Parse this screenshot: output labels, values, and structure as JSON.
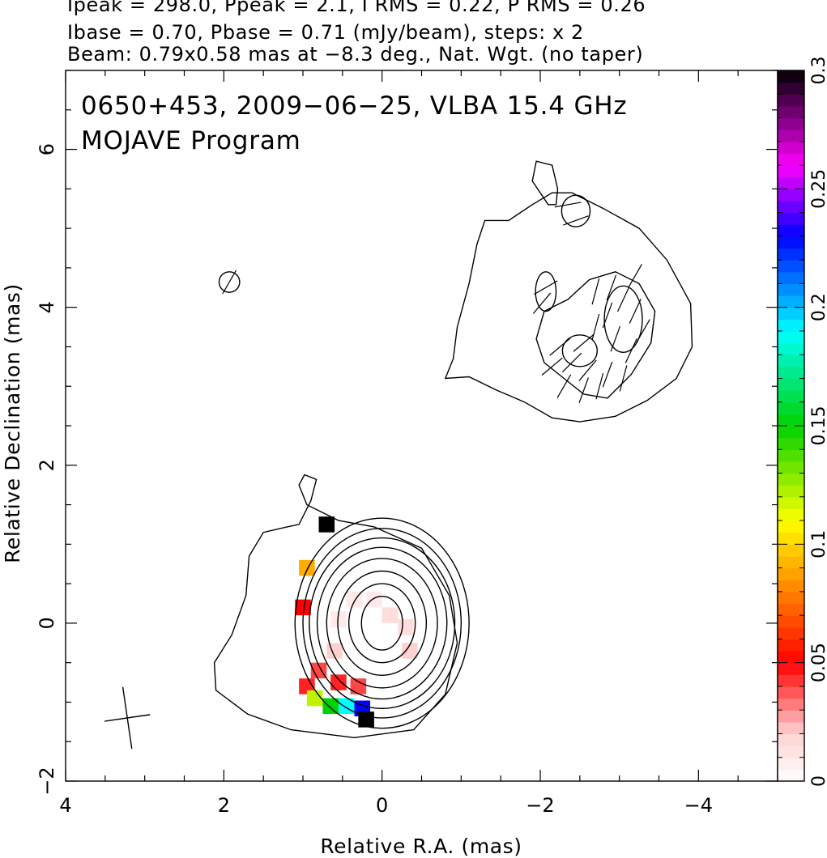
{
  "header": {
    "line1": "Ipeak = 298.0, Ppeak = 2.1, I RMS = 0.22, P RMS = 0.26",
    "line2": "Ibase = 0.70, Pbase = 0.71 (mJy/beam), steps: x 2",
    "line3": "Beam: 0.79x0.58 mas at −8.3 deg., Nat. Wgt. (no taper)"
  },
  "chart_data": {
    "type": "heatmap",
    "title": "0650+453, 2009−06−25, VLBA 15.4 GHz",
    "subtitle": "MOJAVE Program",
    "xlabel": "Relative R.A. (mas)",
    "ylabel": "Relative Declination (mas)",
    "xlim": [
      4,
      -5
    ],
    "ylim": [
      -2,
      7
    ],
    "x_ticks": [
      {
        "value": 4,
        "label": "4"
      },
      {
        "value": 2,
        "label": "2"
      },
      {
        "value": 0,
        "label": "0"
      },
      {
        "value": -2,
        "label": "−2"
      },
      {
        "value": -4,
        "label": "−4"
      }
    ],
    "y_ticks": [
      {
        "value": -2,
        "label": "−2"
      },
      {
        "value": 0,
        "label": "0"
      },
      {
        "value": 2,
        "label": "2"
      },
      {
        "value": 4,
        "label": "4"
      },
      {
        "value": 6,
        "label": "6"
      }
    ],
    "colorbar": {
      "range": [
        0,
        0.3
      ],
      "ticks": [
        {
          "value": 0,
          "label": "0"
        },
        {
          "value": 0.05,
          "label": "0.05"
        },
        {
          "value": 0.1,
          "label": "0.1"
        },
        {
          "value": 0.15,
          "label": "0.15"
        },
        {
          "value": 0.2,
          "label": "0.2"
        },
        {
          "value": 0.25,
          "label": "0.25"
        },
        {
          "value": 0.3,
          "label": "0.3"
        }
      ]
    },
    "core_center": [
      0,
      0
    ],
    "core_contours": [
      {
        "rx": 0.26,
        "ry": 0.34
      },
      {
        "rx": 0.42,
        "ry": 0.5
      },
      {
        "rx": 0.56,
        "ry": 0.66
      },
      {
        "rx": 0.7,
        "ry": 0.82
      },
      {
        "rx": 0.82,
        "ry": 0.96
      },
      {
        "rx": 0.92,
        "ry": 1.08
      },
      {
        "rx": 1.0,
        "ry": 1.2
      },
      {
        "rx": 1.1,
        "ry": 1.33
      }
    ],
    "core_outer_contour": [
      [
        1.2,
        1.22
      ],
      [
        1.05,
        1.25
      ],
      [
        0.9,
        1.55
      ],
      [
        0.83,
        1.82
      ],
      [
        0.98,
        1.88
      ],
      [
        1.05,
        1.75
      ],
      [
        0.95,
        1.5
      ],
      [
        0.55,
        1.3
      ],
      [
        0.1,
        1.22
      ],
      [
        -0.5,
        0.95
      ],
      [
        -0.85,
        0.35
      ],
      [
        -0.95,
        -0.25
      ],
      [
        -0.8,
        -0.9
      ],
      [
        -0.4,
        -1.35
      ],
      [
        0.35,
        -1.45
      ],
      [
        1.15,
        -1.35
      ],
      [
        1.7,
        -1.15
      ],
      [
        2.1,
        -0.85
      ],
      [
        2.12,
        -0.5
      ],
      [
        1.9,
        -0.15
      ],
      [
        1.72,
        0.35
      ],
      [
        1.68,
        0.85
      ],
      [
        1.5,
        1.15
      ],
      [
        1.2,
        1.22
      ]
    ],
    "jet_outer_contour": [
      [
        -1.3,
        5.1
      ],
      [
        -1.6,
        5.1
      ],
      [
        -1.9,
        5.3
      ],
      [
        -2.15,
        5.45
      ],
      [
        -2.4,
        5.45
      ],
      [
        -2.8,
        5.25
      ],
      [
        -3.25,
        5.0
      ],
      [
        -3.6,
        4.6
      ],
      [
        -3.9,
        4.05
      ],
      [
        -3.92,
        3.5
      ],
      [
        -3.72,
        3.1
      ],
      [
        -3.35,
        2.82
      ],
      [
        -2.95,
        2.62
      ],
      [
        -2.5,
        2.55
      ],
      [
        -2.15,
        2.6
      ],
      [
        -1.8,
        2.8
      ],
      [
        -1.45,
        2.95
      ],
      [
        -1.1,
        3.12
      ],
      [
        -0.8,
        3.1
      ],
      [
        -0.9,
        3.35
      ],
      [
        -0.95,
        3.75
      ],
      [
        -1.1,
        4.3
      ],
      [
        -1.2,
        4.8
      ],
      [
        -1.3,
        5.1
      ]
    ],
    "jet_inner_contour": [
      [
        -2.05,
        3.3
      ],
      [
        -1.95,
        3.6
      ],
      [
        -2.05,
        3.95
      ],
      [
        -2.35,
        4.1
      ],
      [
        -2.62,
        4.35
      ],
      [
        -2.95,
        4.45
      ],
      [
        -3.25,
        4.3
      ],
      [
        -3.45,
        3.95
      ],
      [
        -3.4,
        3.55
      ],
      [
        -3.15,
        3.15
      ],
      [
        -2.85,
        2.85
      ],
      [
        -2.55,
        2.9
      ],
      [
        -2.3,
        3.1
      ],
      [
        -2.05,
        3.3
      ]
    ],
    "jet_peaks": [
      {
        "cx": -3.05,
        "cy": 3.85,
        "rx": 0.24,
        "ry": 0.42
      },
      {
        "cx": -2.5,
        "cy": 3.45,
        "rx": 0.22,
        "ry": 0.2
      }
    ],
    "small_components": [
      {
        "cx": 1.93,
        "cy": 4.32,
        "rx": 0.13,
        "ry": 0.13
      },
      {
        "cx": -2.07,
        "cy": 4.2,
        "rx": 0.13,
        "ry": 0.25
      },
      {
        "cx": -2.45,
        "cy": 5.22,
        "rx": 0.18,
        "ry": 0.2
      }
    ],
    "jet_top_lobe": [
      [
        -2.1,
        5.3
      ],
      [
        -1.9,
        5.6
      ],
      [
        -1.95,
        5.85
      ],
      [
        -2.15,
        5.8
      ],
      [
        -2.22,
        5.5
      ],
      [
        -2.2,
        5.3
      ]
    ],
    "evpa_ticks": [
      [
        -2.07,
        4.25,
        60
      ],
      [
        -2.02,
        4.05,
        40
      ],
      [
        1.93,
        4.32,
        30
      ],
      [
        -2.45,
        5.1,
        70
      ],
      [
        -2.35,
        5.3,
        80
      ],
      [
        -2.9,
        4.25,
        20
      ],
      [
        -3.05,
        4.1,
        25
      ],
      [
        -3.2,
        3.95,
        25
      ],
      [
        -2.85,
        3.9,
        20
      ],
      [
        -3.3,
        3.7,
        30
      ],
      [
        -2.7,
        3.75,
        15
      ],
      [
        -2.95,
        3.6,
        20
      ],
      [
        -3.15,
        3.45,
        25
      ],
      [
        -2.55,
        3.55,
        50
      ],
      [
        -2.25,
        3.5,
        50
      ],
      [
        -2.4,
        3.3,
        45
      ],
      [
        -2.6,
        3.2,
        40
      ],
      [
        -2.85,
        3.15,
        20
      ],
      [
        -3.05,
        3.1,
        15
      ],
      [
        -2.15,
        3.25,
        50
      ],
      [
        -2.3,
        3.0,
        30
      ],
      [
        -2.55,
        2.95,
        20
      ],
      [
        -2.75,
        3.0,
        15
      ],
      [
        -3.2,
        4.4,
        30
      ],
      [
        -2.7,
        4.2,
        15
      ]
    ],
    "core_pixels": [
      {
        "x": 0.55,
        "y": 0.05,
        "v": 0.01
      },
      {
        "x": 0.35,
        "y": 0.3,
        "v": 0.01
      },
      {
        "x": 0.1,
        "y": 0.3,
        "v": 0.01
      },
      {
        "x": -0.1,
        "y": 0.1,
        "v": 0.015
      },
      {
        "x": -0.3,
        "y": -0.05,
        "v": 0.015
      },
      {
        "x": 0.6,
        "y": -0.35,
        "v": 0.02
      },
      {
        "x": -0.35,
        "y": -0.35,
        "v": 0.02
      },
      {
        "x": 0.8,
        "y": -0.6,
        "v": 0.04
      },
      {
        "x": 0.55,
        "y": -0.75,
        "v": 0.045
      },
      {
        "x": 0.95,
        "y": -0.8,
        "v": 0.045
      },
      {
        "x": 0.3,
        "y": -0.8,
        "v": 0.04
      },
      {
        "x": 1.0,
        "y": 0.2,
        "v": 0.05
      },
      {
        "x": 0.95,
        "y": 0.7,
        "v": 0.09
      },
      {
        "x": 0.85,
        "y": -0.95,
        "v": 0.12
      },
      {
        "x": 0.65,
        "y": -1.05,
        "v": 0.15
      },
      {
        "x": 0.45,
        "y": -1.05,
        "v": 0.19
      },
      {
        "x": 0.25,
        "y": -1.08,
        "v": 0.23
      },
      {
        "x": 0.2,
        "y": -1.22,
        "v": 0.3
      },
      {
        "x": 0.7,
        "y": 1.25,
        "v": 0.3
      }
    ],
    "beam": {
      "cx": 3.22,
      "cy": -1.2,
      "major": 0.79,
      "minor": 0.58,
      "pa_deg": -8.3
    }
  }
}
